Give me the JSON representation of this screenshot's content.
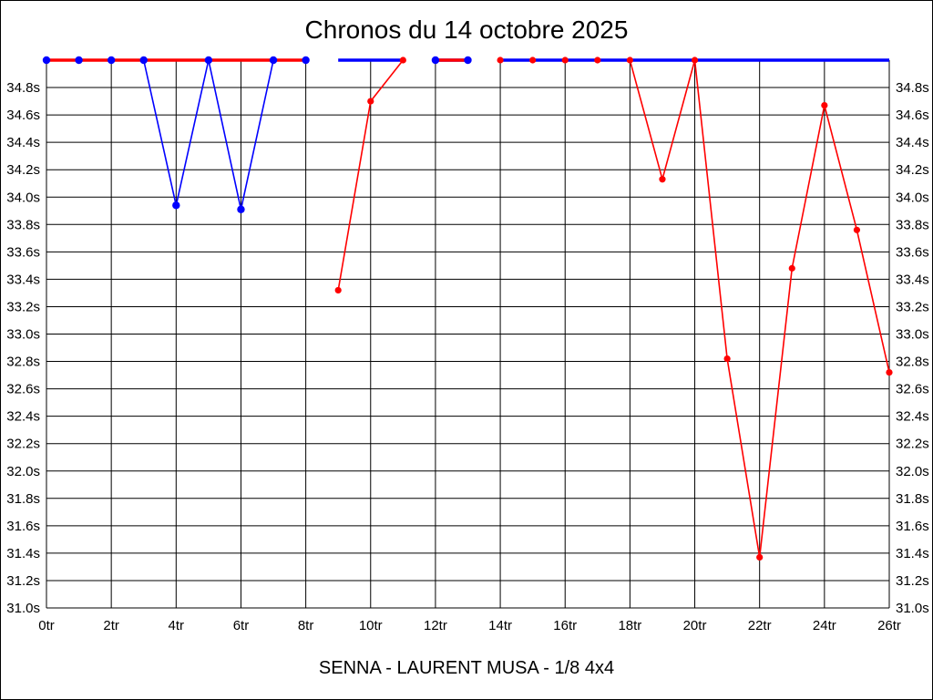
{
  "title": "Chronos du 14 octobre 2025",
  "caption": "SENNA - LAURENT MUSA - 1/8 4x4",
  "chart_data": {
    "type": "line",
    "title": "Chronos du 14 octobre 2025",
    "subtitle": "SENNA - LAURENT MUSA - 1/8 4x4",
    "x_unit": "tr",
    "y_unit": "s",
    "xlim": [
      0,
      26
    ],
    "ylim": [
      31.0,
      35.0
    ],
    "grid": true,
    "legend": "none",
    "colors": {
      "red": "#ff0000",
      "blue": "#0000ff",
      "grid": "#000000",
      "background": "#ffffff"
    },
    "x_tick_values": [
      0,
      2,
      4,
      6,
      8,
      10,
      12,
      14,
      16,
      18,
      20,
      22,
      24,
      26
    ],
    "x_tick_labels": [
      "0tr",
      "2tr",
      "4tr",
      "6tr",
      "8tr",
      "10tr",
      "12tr",
      "14tr",
      "16tr",
      "18tr",
      "20tr",
      "22tr",
      "24tr",
      "26tr"
    ],
    "y_tick_values": [
      34.8,
      34.6,
      34.4,
      34.2,
      34.0,
      33.8,
      33.6,
      33.4,
      33.2,
      33.0,
      32.8,
      32.6,
      32.4,
      32.2,
      32.0,
      31.8,
      31.6,
      31.4,
      31.2,
      31.0
    ],
    "y_tick_labels": [
      "34.8s",
      "34.6s",
      "34.4s",
      "34.2s",
      "34.0s",
      "33.8s",
      "33.6s",
      "33.4s",
      "33.2s",
      "33.0s",
      "32.8s",
      "32.6s",
      "32.4s",
      "32.2s",
      "32.0s",
      "31.8s",
      "31.6s",
      "31.4s",
      "31.2s",
      "31.0s"
    ],
    "cap_value": 35.0,
    "gaps_between_laps": [
      [
        8,
        9
      ],
      [
        11,
        12
      ],
      [
        13,
        14
      ]
    ],
    "series": [
      {
        "name": "blue",
        "color": "#0000ff",
        "on_scale_points": [
          [
            4,
            33.94
          ],
          [
            6,
            33.91
          ]
        ],
        "capped_marker_laps": [
          0,
          1,
          2,
          3,
          5,
          7,
          8,
          12,
          13
        ],
        "capped_line_runs": [
          [
            0,
            8
          ],
          [
            9,
            11
          ],
          [
            12,
            13
          ],
          [
            14,
            26
          ]
        ]
      },
      {
        "name": "red",
        "color": "#ff0000",
        "on_scale_points": [
          [
            9,
            33.32
          ],
          [
            10,
            34.7
          ],
          [
            19,
            34.13
          ],
          [
            21,
            32.82
          ],
          [
            22,
            31.37
          ],
          [
            23,
            33.48
          ],
          [
            24,
            34.67
          ],
          [
            25,
            33.76
          ],
          [
            26,
            32.72
          ]
        ],
        "capped_marker_laps": [
          11,
          12,
          13,
          14,
          15,
          16,
          17,
          18,
          20
        ],
        "capped_line_runs": [
          [
            0,
            8
          ],
          [
            12,
            13
          ],
          [
            14,
            18
          ]
        ]
      }
    ],
    "render_layers": [
      {
        "id": "blue-stint1-line",
        "color": "blue",
        "type": "line",
        "width": 1.6,
        "points": [
          [
            0,
            35
          ],
          [
            1,
            35
          ],
          [
            2,
            35
          ],
          [
            3,
            35
          ],
          [
            4,
            33.94
          ],
          [
            5,
            35
          ],
          [
            6,
            33.91
          ],
          [
            7,
            35
          ],
          [
            8,
            35
          ]
        ]
      },
      {
        "id": "blue-stint3-capline",
        "color": "blue",
        "type": "line",
        "width": 3.5,
        "points": [
          [
            12,
            35
          ],
          [
            13,
            35
          ]
        ]
      },
      {
        "id": "red-stint2-line",
        "color": "red",
        "type": "line",
        "width": 1.6,
        "points": [
          [
            9,
            33.32
          ],
          [
            10,
            34.7
          ],
          [
            11,
            35
          ]
        ]
      },
      {
        "id": "red-stint4-line",
        "color": "red",
        "type": "line",
        "width": 1.6,
        "points": [
          [
            14,
            35
          ],
          [
            15,
            35
          ],
          [
            16,
            35
          ],
          [
            17,
            35
          ],
          [
            18,
            35
          ],
          [
            19,
            34.13
          ],
          [
            20,
            35
          ],
          [
            21,
            32.82
          ],
          [
            22,
            31.37
          ],
          [
            23,
            33.48
          ],
          [
            24,
            34.67
          ],
          [
            25,
            33.76
          ],
          [
            26,
            32.72
          ]
        ]
      },
      {
        "id": "blue-stint2-capline",
        "color": "blue",
        "type": "line",
        "width": 3.5,
        "points": [
          [
            9,
            35
          ],
          [
            11,
            35
          ]
        ]
      },
      {
        "id": "blue-stint4-capline",
        "color": "blue",
        "type": "line",
        "width": 3.5,
        "points": [
          [
            14,
            35
          ],
          [
            26,
            35
          ]
        ]
      },
      {
        "id": "red-stint1-capline",
        "color": "red",
        "type": "line",
        "width": 3.5,
        "points": [
          [
            0,
            35
          ],
          [
            8,
            35
          ]
        ]
      },
      {
        "id": "red-stint3-capline",
        "color": "red",
        "type": "line",
        "width": 3.5,
        "points": [
          [
            12,
            35
          ],
          [
            13,
            35
          ]
        ]
      },
      {
        "id": "red-markers",
        "color": "red",
        "type": "markers",
        "radius": 3.6,
        "points": [
          [
            9,
            33.32
          ],
          [
            10,
            34.7
          ],
          [
            11,
            35
          ],
          [
            12,
            35
          ],
          [
            13,
            35
          ],
          [
            14,
            35
          ],
          [
            15,
            35
          ],
          [
            16,
            35
          ],
          [
            17,
            35
          ],
          [
            18,
            35
          ],
          [
            19,
            34.13
          ],
          [
            20,
            35
          ],
          [
            21,
            32.82
          ],
          [
            22,
            31.37
          ],
          [
            23,
            33.48
          ],
          [
            24,
            34.67
          ],
          [
            25,
            33.76
          ],
          [
            26,
            32.72
          ]
        ]
      },
      {
        "id": "blue-markers",
        "color": "blue",
        "type": "markers",
        "radius": 4.2,
        "points": [
          [
            0,
            35
          ],
          [
            1,
            35
          ],
          [
            2,
            35
          ],
          [
            3,
            35
          ],
          [
            4,
            33.94
          ],
          [
            5,
            35
          ],
          [
            6,
            33.91
          ],
          [
            7,
            35
          ],
          [
            8,
            35
          ],
          [
            12,
            35
          ],
          [
            13,
            35
          ]
        ]
      }
    ]
  }
}
